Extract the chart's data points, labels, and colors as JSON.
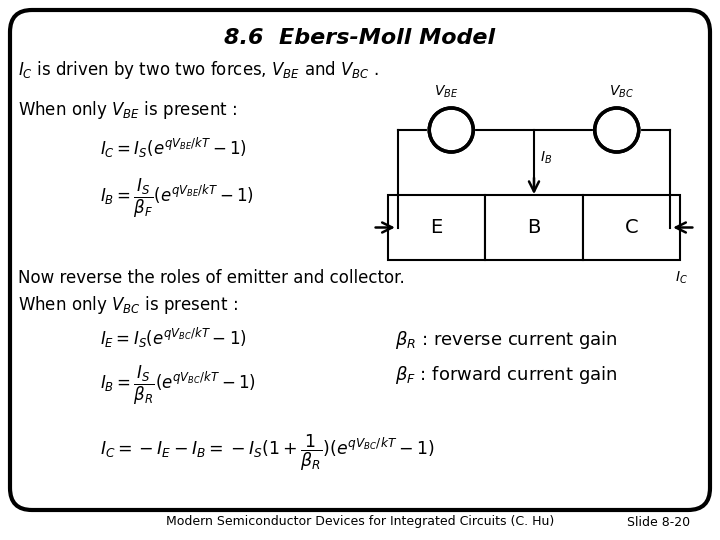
{
  "title": "8.6  Ebers-Moll Model",
  "background_color": "#ffffff",
  "border_color": "#000000",
  "text_color": "#000000",
  "footer_text": "Modern Semiconductor Devices for Integrated Circuits (C. Hu)",
  "slide_number": "Slide 8-20",
  "figsize": [
    7.2,
    5.4
  ],
  "dpi": 100,
  "line1": "$I_C$ is driven by two two forces, $V_{BE}$ and $V_{BC}$ .",
  "line2": "When only $V_{BE}$ is present :",
  "eq1": "$I_C = I_S(e^{qV_{BE}/kT}-1)$",
  "eq2": "$I_B = \\dfrac{I_S}{\\beta_F}(e^{qV_{BE}/kT}-1)$",
  "line3": "Now reverse the roles of emitter and collector.",
  "line4": "When only $V_{BC}$ is present :",
  "eq3": "$I_E = I_S(e^{qV_{BC}/kT}-1)$",
  "eq4": "$I_B = \\dfrac{I_S}{\\beta_R}(e^{qV_{BC}/kT}-1)$",
  "eq5": "$I_C = -I_E - I_B = -I_S(1+\\dfrac{1}{\\beta_R})(e^{qV_{BC}/kT}-1)$",
  "beta_r": "$\\beta_R$ : reverse current gain",
  "beta_f": "$\\beta_F$ : forward current gain",
  "ebc_labels": [
    "E",
    "B",
    "C"
  ],
  "vbe_label": "$V_{BE}$",
  "vbc_label": "$V_{BC}$",
  "ib_label": "$I_B$",
  "ic_label": "$I_C$"
}
